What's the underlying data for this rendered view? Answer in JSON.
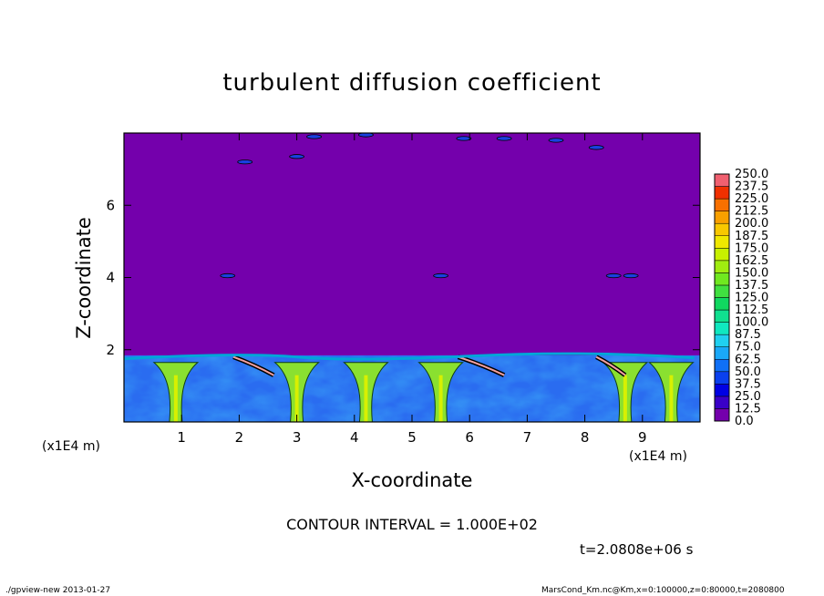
{
  "chart_data": {
    "type": "heatmap",
    "title": "turbulent diffusion coefficient",
    "xlabel": "X-coordinate",
    "ylabel": "Z-coordinate",
    "x_unit": "(x1E4 m)",
    "y_unit": "(x1E4 m)",
    "xlim": [
      0,
      10
    ],
    "ylim": [
      0,
      8
    ],
    "x_ticks": [
      "1",
      "2",
      "3",
      "4",
      "5",
      "6",
      "7",
      "8",
      "9"
    ],
    "y_ticks": [
      "2",
      "4",
      "6"
    ],
    "colorbar_levels": [
      "0.0",
      "12.5",
      "25.0",
      "37.5",
      "50.0",
      "62.5",
      "75.0",
      "87.5",
      "100.0",
      "112.5",
      "125.0",
      "137.5",
      "150.0",
      "162.5",
      "175.0",
      "187.5",
      "200.0",
      "212.5",
      "225.0",
      "237.5",
      "250.0"
    ],
    "colorbar_colors": [
      "#7400ac",
      "#3a00c8",
      "#0000e4",
      "#0a40ee",
      "#1070f6",
      "#1aa8f8",
      "#20d0f0",
      "#10e8c0",
      "#10e090",
      "#10d860",
      "#40e040",
      "#70e820",
      "#a0ec10",
      "#c8f000",
      "#f0e800",
      "#f8c800",
      "#f8a000",
      "#f87000",
      "#f03000",
      "#f06070"
    ],
    "boundary_layer_top": 1.85,
    "upper_layer_value": "0.0",
    "contour_interval": "CONTOUR INTERVAL = 1.000E+02",
    "time_label": "t=2.0808e+06 s"
  },
  "footer": {
    "left": "./gpview-new  2013-01-27",
    "right": "MarsCond_Km.nc@Km,x=0:100000,z=0:80000,t=2080800"
  }
}
